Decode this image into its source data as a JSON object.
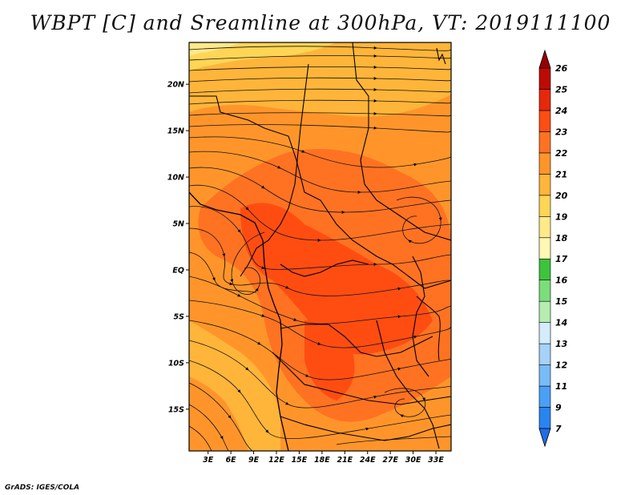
{
  "title": "WBPT [C] and Sreamline at 300hPa, VT: 2019111100",
  "credit": "GrADS: IGES/COLA",
  "map": {
    "lat_labels": [
      "20N",
      "15N",
      "10N",
      "5N",
      "EQ",
      "5S",
      "10S",
      "15S"
    ],
    "lon_labels": [
      "3E",
      "6E",
      "9E",
      "12E",
      "15E",
      "18E",
      "21E",
      "24E",
      "27E",
      "30E",
      "33E"
    ],
    "lat_values": [
      20,
      15,
      10,
      5,
      0,
      -5,
      -10,
      -15
    ],
    "lon_values": [
      3,
      6,
      9,
      12,
      15,
      18,
      21,
      24,
      27,
      30,
      33
    ],
    "lat_range": [
      -19.5,
      24.5
    ],
    "lon_range": [
      0.5,
      35.0
    ]
  },
  "colorbar": {
    "colors": [
      "#1e6ee6",
      "#2a84f0",
      "#4aa0f5",
      "#78bcf7",
      "#a6d2fa",
      "#d4ecfb",
      "#b4ecb2",
      "#7cde7a",
      "#3ec33c",
      "#fff7b4",
      "#ffe98a",
      "#ffd556",
      "#ffb53a",
      "#ff952a",
      "#ff7222",
      "#ff4d12",
      "#e6280a",
      "#bc0b04",
      "#970000"
    ],
    "labels": [
      "7",
      "9",
      "11",
      "12",
      "13",
      "14",
      "15",
      "16",
      "17",
      "18",
      "19",
      "20",
      "21",
      "22",
      "23",
      "24",
      "25",
      "26"
    ]
  }
}
